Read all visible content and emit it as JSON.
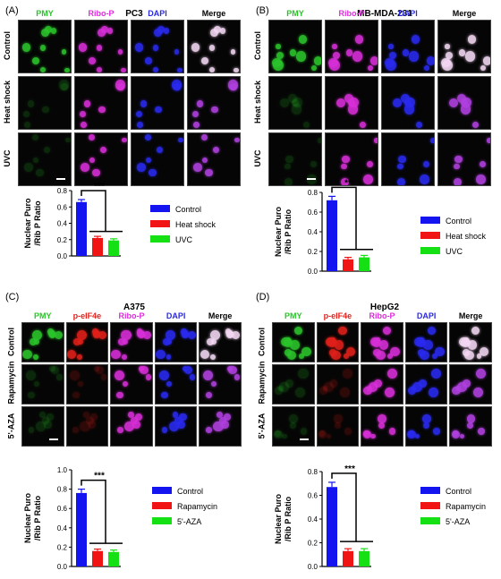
{
  "colors": {
    "green": "#39c639",
    "red": "#e0261f",
    "magenta": "#d12fd1",
    "blue": "#2323c8",
    "white": "#000000"
  },
  "panels": [
    {
      "label": "(A)",
      "title": "PC3",
      "channels": [
        "PMY",
        "Ribo-P",
        "DAPI",
        "Merge"
      ],
      "channel_colors": [
        "#2bc42b",
        "#d82fd8",
        "#2a2ae0",
        "#000000"
      ],
      "rows": [
        "Control",
        "Heat shock",
        "UVC"
      ]
    },
    {
      "label": "(B)",
      "title": "MB-MDA-231",
      "channels": [
        "PMY",
        "Ribo-P",
        "DAPI",
        "Merge"
      ],
      "channel_colors": [
        "#2bc42b",
        "#d82fd8",
        "#2a2ae0",
        "#000000"
      ],
      "rows": [
        "Control",
        "Heat shock",
        "UVC"
      ]
    },
    {
      "label": "(C)",
      "title": "A375",
      "channels": [
        "PMY",
        "p-eIF4e",
        "Ribo-P",
        "DAPI",
        "Merge"
      ],
      "channel_colors": [
        "#2bc42b",
        "#e0201a",
        "#d82fd8",
        "#2a2ae0",
        "#000000"
      ],
      "rows": [
        "Control",
        "Rapamycin",
        "5'-AZA"
      ]
    },
    {
      "label": "(D)",
      "title": "HepG2",
      "channels": [
        "PMY",
        "p-eIF4e",
        "Ribo-P",
        "DAPI",
        "Merge"
      ],
      "channel_colors": [
        "#2bc42b",
        "#e0201a",
        "#d82fd8",
        "#2a2ae0",
        "#000000"
      ],
      "rows": [
        "Control",
        "Rapamycin",
        "5'-AZA"
      ]
    }
  ],
  "chart_data": [
    {
      "type": "bar",
      "panel": "A",
      "categories": [
        "Control",
        "Heat shock",
        "UVC"
      ],
      "values": [
        0.66,
        0.22,
        0.19
      ],
      "errors": [
        0.03,
        0.02,
        0.02
      ],
      "colors": [
        "#1414f0",
        "#f01414",
        "#14e014"
      ],
      "ylabel": "Nuclear Puro /Rib P Ratio",
      "ylim": [
        0,
        0.8
      ],
      "yticks": [
        "0.0",
        "0.2",
        "0.4",
        "0.6",
        "0.8"
      ],
      "significance": "***",
      "legend": [
        "Control",
        "Heat shock",
        "UVC"
      ]
    },
    {
      "type": "bar",
      "panel": "B",
      "categories": [
        "Control",
        "Heat shock",
        "UVC"
      ],
      "values": [
        0.72,
        0.12,
        0.14
      ],
      "errors": [
        0.04,
        0.02,
        0.02
      ],
      "colors": [
        "#1414f0",
        "#f01414",
        "#14e014"
      ],
      "ylabel": "Nuclear Puro /Rib P Ratio",
      "ylim": [
        0,
        0.8
      ],
      "yticks": [
        "0.0",
        "0.2",
        "0.4",
        "0.6",
        "0.8"
      ],
      "significance": "***",
      "legend": [
        "Control",
        "Heat shock",
        "UVC"
      ]
    },
    {
      "type": "bar",
      "panel": "C",
      "categories": [
        "Control",
        "Rapamycin",
        "5'-AZA"
      ],
      "values": [
        0.76,
        0.16,
        0.15
      ],
      "errors": [
        0.04,
        0.02,
        0.02
      ],
      "colors": [
        "#1414f0",
        "#f01414",
        "#14e014"
      ],
      "ylabel": "Nuclear Puro /Rib P Ratio",
      "ylim": [
        0,
        1.0
      ],
      "yticks": [
        "0.0",
        "0.2",
        "0.4",
        "0.6",
        "0.8",
        "1.0"
      ],
      "significance": "***",
      "legend": [
        "Control",
        "Rapamycin",
        "5'-AZA"
      ]
    },
    {
      "type": "bar",
      "panel": "D",
      "categories": [
        "Control",
        "Rapamycin",
        "5'-AZA"
      ],
      "values": [
        0.67,
        0.13,
        0.13
      ],
      "errors": [
        0.04,
        0.02,
        0.02
      ],
      "colors": [
        "#1414f0",
        "#f01414",
        "#14e014"
      ],
      "ylabel": "Nuclear Puro /Rib P Ratio",
      "ylim": [
        0,
        0.8
      ],
      "yticks": [
        "0.0",
        "0.2",
        "0.4",
        "0.6",
        "0.8"
      ],
      "significance": "***",
      "legend": [
        "Control",
        "Rapamycin",
        "5'-AZA"
      ]
    }
  ]
}
